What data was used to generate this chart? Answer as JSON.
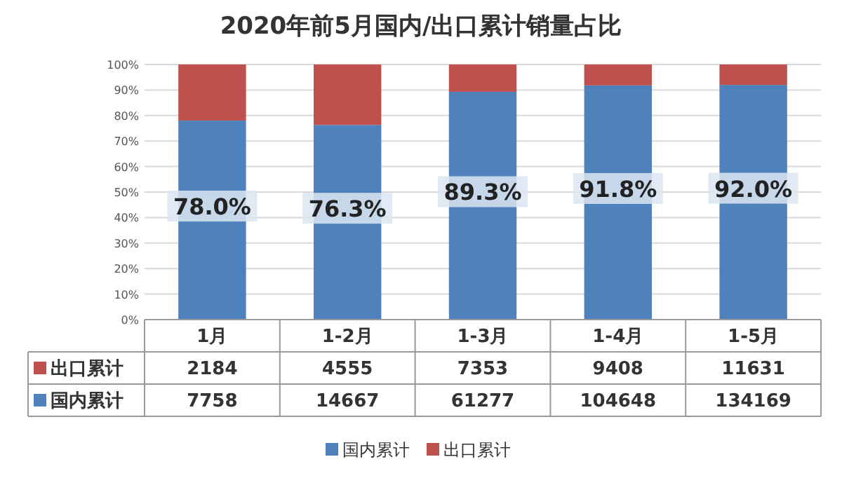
{
  "chart_data": {
    "type": "bar",
    "stacked": true,
    "title": "2020年前5月国内/出口累计销量占比",
    "categories": [
      "1月",
      "1-2月",
      "1-3月",
      "1-4月",
      "1-5月"
    ],
    "series": [
      {
        "name": "国内累计",
        "color": "#4f81bd",
        "values": [
          78.0,
          76.3,
          89.3,
          91.8,
          92.0
        ],
        "value_labels": [
          "78.0%",
          "76.3%",
          "89.3%",
          "91.8%",
          "92.0%"
        ]
      },
      {
        "name": "出口累计",
        "color": "#c0504d",
        "values": [
          22.0,
          23.7,
          10.7,
          8.2,
          8.0
        ]
      }
    ],
    "ylim": [
      0,
      100
    ],
    "yticks": [
      {
        "value": 0,
        "label": "0%"
      },
      {
        "value": 10,
        "label": "10%"
      },
      {
        "value": 20,
        "label": "20%"
      },
      {
        "value": 30,
        "label": "30%"
      },
      {
        "value": 40,
        "label": "40%"
      },
      {
        "value": 50,
        "label": "50%"
      },
      {
        "value": 60,
        "label": "60%"
      },
      {
        "value": 70,
        "label": "70%"
      },
      {
        "value": 80,
        "label": "80%"
      },
      {
        "value": 90,
        "label": "90%"
      },
      {
        "value": 100,
        "label": "100%"
      }
    ],
    "grid": "y",
    "legend": "bottom",
    "annotations": [
      "2184",
      "4555",
      "7353",
      "9408",
      "11631",
      "7758",
      "14667",
      "61277",
      "104648",
      "134169"
    ]
  }
}
